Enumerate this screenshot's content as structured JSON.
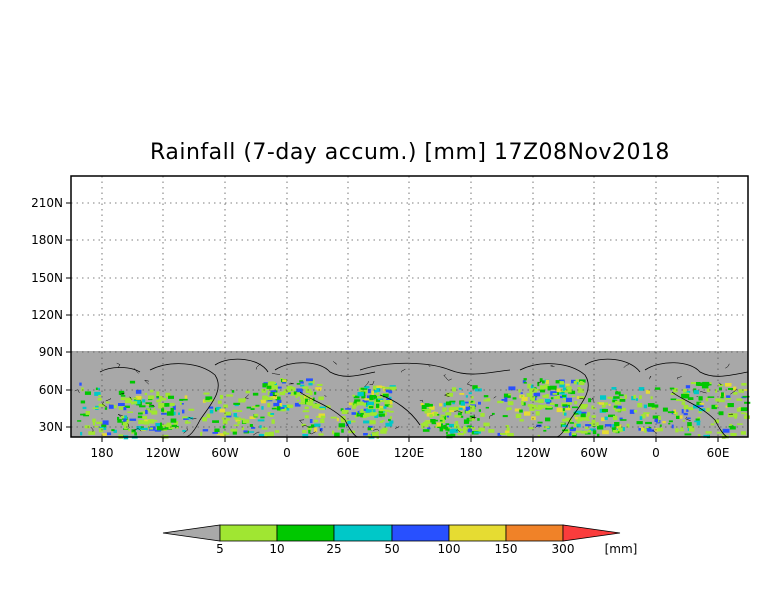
{
  "title": "Rainfall (7-day accum.) [mm] 17Z08Nov2018",
  "map": {
    "lat_labels": [
      "210N",
      "180N",
      "150N",
      "120N",
      "90N",
      "60N",
      "30N"
    ],
    "lon_labels": [
      "180",
      "120W",
      "60W",
      "0",
      "60E",
      "120E",
      "180",
      "120W",
      "60W",
      "0",
      "60E"
    ],
    "gridlines": "dotted",
    "no_data_color": "#a8a8a8",
    "coastline_color": "#000000"
  },
  "colorbar": {
    "thresholds": [
      "5",
      "10",
      "25",
      "50",
      "100",
      "150",
      "300"
    ],
    "unit": "[mm]",
    "colors": [
      "#a9a9a9",
      "#a0e632",
      "#00c800",
      "#00c8c8",
      "#2850ff",
      "#e6dc32",
      "#f08228",
      "#fa3c3c"
    ]
  }
}
